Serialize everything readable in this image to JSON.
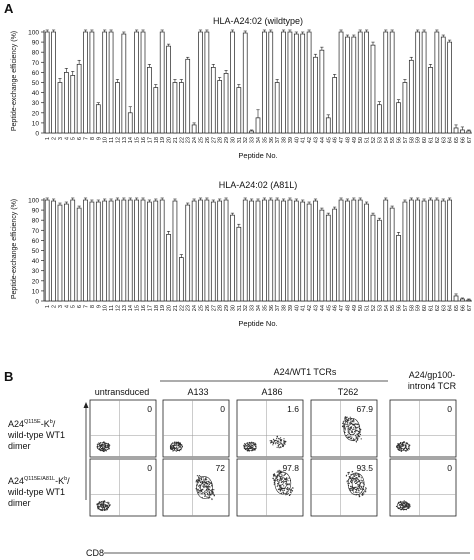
{
  "panel_a": {
    "label": "A",
    "charts": [
      {
        "title": "HLA-A24:02 (wildtype)",
        "ylabel": "Peptide-exchange efficiency (%)",
        "xlabel": "Peptide No."
      },
      {
        "title": "HLA-A24:02 (A81L)",
        "ylabel": "Peptide-exchange efficiency (%)",
        "xlabel": "Peptide No."
      }
    ]
  },
  "chart_data": [
    {
      "type": "bar",
      "title": "HLA-A24:02 (wildtype)",
      "xlabel": "Peptide No.",
      "ylabel": "Peptide-exchange efficiency (%)",
      "ylim": [
        0,
        100
      ],
      "yticks": [
        0,
        10,
        20,
        30,
        40,
        50,
        60,
        70,
        80,
        90,
        100
      ],
      "categories": [
        "1",
        "2",
        "3",
        "4",
        "5",
        "6",
        "7",
        "8",
        "9",
        "10",
        "11",
        "12",
        "13",
        "14",
        "15",
        "16",
        "17",
        "18",
        "19",
        "20",
        "21",
        "22",
        "23",
        "24",
        "25",
        "26",
        "27",
        "28",
        "29",
        "30",
        "31",
        "32",
        "33",
        "34",
        "35",
        "36",
        "37",
        "38",
        "39",
        "40",
        "41",
        "42",
        "43",
        "44",
        "45",
        "46",
        "47",
        "48",
        "49",
        "50",
        "51",
        "52",
        "53",
        "54",
        "55",
        "56",
        "57",
        "58",
        "59",
        "60",
        "61",
        "62",
        "63",
        "64",
        "65",
        "66",
        "67"
      ],
      "values": [
        100,
        100,
        50,
        60,
        57,
        68,
        100,
        100,
        28,
        100,
        100,
        50,
        98,
        20,
        100,
        100,
        65,
        45,
        100,
        86,
        50,
        50,
        73,
        8,
        100,
        100,
        65,
        52,
        59,
        100,
        45,
        99,
        2,
        15,
        100,
        100,
        50,
        100,
        100,
        98,
        98,
        100,
        75,
        82,
        15,
        55,
        100,
        95,
        95,
        100,
        100,
        87,
        28,
        100,
        100,
        30,
        50,
        72,
        100,
        100,
        65,
        100,
        95,
        90,
        5,
        3,
        2
      ],
      "errors": [
        2,
        2,
        4,
        4,
        4,
        4,
        2,
        2,
        2,
        2,
        2,
        3,
        2,
        6,
        2,
        2,
        3,
        3,
        2,
        2,
        3,
        3,
        2,
        2,
        2,
        2,
        3,
        3,
        3,
        2,
        3,
        2,
        1,
        8,
        2,
        2,
        3,
        2,
        2,
        2,
        2,
        2,
        3,
        3,
        3,
        3,
        2,
        2,
        2,
        2,
        2,
        3,
        3,
        2,
        2,
        3,
        3,
        3,
        2,
        2,
        3,
        2,
        2,
        2,
        3,
        3,
        1
      ]
    },
    {
      "type": "bar",
      "title": "HLA-A24:02 (A81L)",
      "xlabel": "Peptide No.",
      "ylabel": "Peptide-exchange efficiency (%)",
      "ylim": [
        0,
        100
      ],
      "yticks": [
        0,
        10,
        20,
        30,
        40,
        50,
        60,
        70,
        80,
        90,
        100
      ],
      "categories": [
        "1",
        "2",
        "3",
        "4",
        "5",
        "6",
        "7",
        "8",
        "9",
        "10",
        "11",
        "12",
        "13",
        "14",
        "15",
        "16",
        "17",
        "18",
        "19",
        "20",
        "21",
        "22",
        "23",
        "24",
        "25",
        "26",
        "27",
        "28",
        "29",
        "30",
        "31",
        "32",
        "33",
        "34",
        "35",
        "36",
        "37",
        "38",
        "39",
        "40",
        "41",
        "42",
        "43",
        "44",
        "45",
        "46",
        "47",
        "48",
        "49",
        "50",
        "51",
        "52",
        "53",
        "54",
        "55",
        "56",
        "57",
        "58",
        "59",
        "60",
        "61",
        "62",
        "63",
        "64",
        "65",
        "66",
        "67"
      ],
      "values": [
        100,
        99,
        95,
        96,
        100,
        92,
        100,
        98,
        98,
        99,
        99,
        100,
        100,
        100,
        100,
        100,
        98,
        99,
        100,
        66,
        99,
        43,
        95,
        99,
        100,
        100,
        98,
        99,
        100,
        85,
        73,
        100,
        99,
        99,
        100,
        100,
        100,
        99,
        100,
        99,
        98,
        96,
        99,
        90,
        85,
        91,
        100,
        99,
        100,
        100,
        96,
        85,
        80,
        100,
        92,
        65,
        98,
        100,
        100,
        99,
        100,
        100,
        99,
        100,
        5,
        2,
        1
      ],
      "errors": [
        2,
        2,
        2,
        2,
        2,
        2,
        2,
        2,
        2,
        2,
        2,
        2,
        2,
        2,
        2,
        2,
        2,
        2,
        2,
        3,
        2,
        3,
        2,
        2,
        2,
        2,
        2,
        2,
        2,
        2,
        3,
        2,
        2,
        2,
        2,
        2,
        2,
        2,
        2,
        2,
        2,
        2,
        2,
        2,
        2,
        2,
        2,
        2,
        2,
        2,
        2,
        2,
        2,
        2,
        2,
        3,
        2,
        2,
        2,
        2,
        2,
        2,
        2,
        2,
        2,
        1,
        1
      ]
    }
  ],
  "panel_b": {
    "label": "B",
    "group_header": "A24/WT1 TCRs",
    "columns": [
      "untransduced",
      "A133",
      "A186",
      "T262",
      "A24/gp100-\nintron4 TCR"
    ],
    "rows": [
      {
        "label_pre": "A24",
        "label_sup": "Q115E",
        "label_mid": "-K",
        "label_sup2": "b",
        "label_post": "/",
        "label_line2": "wild-type WT1",
        "label_line3": "dimer",
        "values": [
          "0",
          "0",
          "1.6",
          "67.9",
          "0"
        ]
      },
      {
        "label_pre": "A24",
        "label_sup": "Q115E/A81L",
        "label_mid": "-K",
        "label_sup2": "b",
        "label_post": "/",
        "label_line2": "wild-type WT1",
        "label_line3": "dimer",
        "values": [
          "0",
          "72",
          "97.8",
          "93.5",
          "0"
        ]
      }
    ],
    "xaxis": "CD8"
  }
}
